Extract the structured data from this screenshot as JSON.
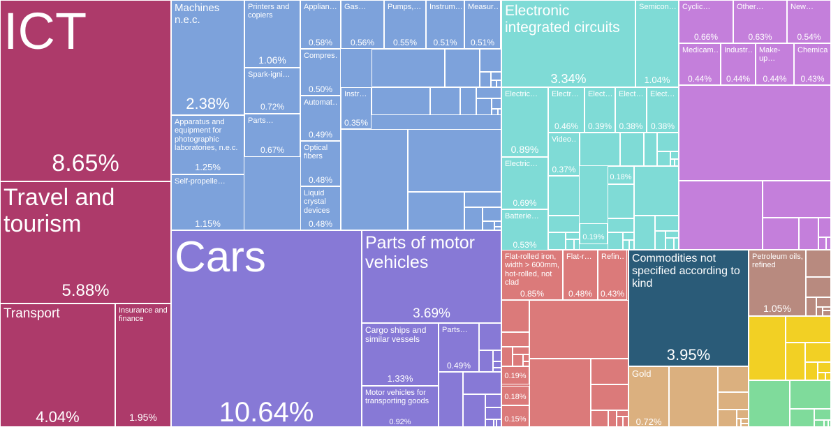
{
  "chart_data": {
    "type": "treemap",
    "title": "",
    "colors": {
      "services": "#ad3a6a",
      "machines": "#7da2db",
      "electronics": "#7fdbd6",
      "chemicals": "#c47fdb",
      "transportation": "#8779d6",
      "metals": "#db7a7a",
      "unspecified": "#2a5b78",
      "precious_metals": "#dbb07f",
      "minerals": "#b88a7f",
      "yellow": "#f2d024",
      "green": "#7fdb9b"
    },
    "tiles": [
      {
        "key": "ict",
        "label": "ICT",
        "value": "8.65%",
        "category": "services"
      },
      {
        "key": "travel",
        "label": "Travel and tourism",
        "value": "5.88%",
        "category": "services"
      },
      {
        "key": "transport",
        "label": "Transport",
        "value": "4.04%",
        "category": "services"
      },
      {
        "key": "insurance",
        "label": "Insurance and finance",
        "value": "1.95%",
        "category": "services"
      },
      {
        "key": "machines-nec",
        "label": "Machines n.e.c.",
        "value": "2.38%",
        "category": "machines"
      },
      {
        "key": "apparatus-photo",
        "label": "Apparatus and equipment for photographic laboratories, n.e.c.",
        "value": "1.25%",
        "category": "machines"
      },
      {
        "key": "self-propelled",
        "label": "Self-propelle…",
        "value": "1.15%",
        "category": "machines"
      },
      {
        "key": "printers",
        "label": "Printers and copiers",
        "value": "1.06%",
        "category": "machines"
      },
      {
        "key": "spark-ignition",
        "label": "Spark-igni…",
        "value": "0.72%",
        "category": "machines"
      },
      {
        "key": "parts-mach",
        "label": "Parts…",
        "value": "0.67%",
        "category": "machines"
      },
      {
        "key": "appliances",
        "label": "Applian…",
        "value": "0.58%",
        "category": "machines"
      },
      {
        "key": "gas",
        "label": "Gas…",
        "value": "0.56%",
        "category": "machines"
      },
      {
        "key": "pumps",
        "label": "Pumps,…",
        "value": "0.55%",
        "category": "machines"
      },
      {
        "key": "instrum",
        "label": "Instrum…",
        "value": "0.51%",
        "category": "machines"
      },
      {
        "key": "measur",
        "label": "Measur…",
        "value": "0.51%",
        "category": "machines"
      },
      {
        "key": "compress",
        "label": "Compres…",
        "value": "0.50%",
        "category": "machines"
      },
      {
        "key": "automat",
        "label": "Automat…",
        "value": "0.49%",
        "category": "machines"
      },
      {
        "key": "optical-fibers",
        "label": "Optical fibers",
        "value": "0.48%",
        "category": "machines"
      },
      {
        "key": "lcd",
        "label": "Liquid crystal devices",
        "value": "0.48%",
        "category": "machines"
      },
      {
        "key": "instr-small",
        "label": "Instr…",
        "value": "0.35%",
        "category": "machines"
      },
      {
        "key": "eic",
        "label": "Electronic integrated circuits",
        "value": "3.34%",
        "category": "electronics"
      },
      {
        "key": "semicon",
        "label": "Semicon…",
        "value": "1.04%",
        "category": "electronics"
      },
      {
        "key": "electric-a",
        "label": "Electric…",
        "value": "0.89%",
        "category": "electronics"
      },
      {
        "key": "electric-b",
        "label": "Electric…",
        "value": "0.69%",
        "category": "electronics"
      },
      {
        "key": "batteries",
        "label": "Batterie…",
        "value": "0.53%",
        "category": "electronics"
      },
      {
        "key": "electr-c",
        "label": "Electr…",
        "value": "0.46%",
        "category": "electronics"
      },
      {
        "key": "elect-d",
        "label": "Elect…",
        "value": "0.39%",
        "category": "electronics"
      },
      {
        "key": "elect-e",
        "label": "Elect…",
        "value": "0.38%",
        "category": "electronics"
      },
      {
        "key": "elect-f",
        "label": "Elect…",
        "value": "0.38%",
        "category": "electronics"
      },
      {
        "key": "video",
        "label": "Video…",
        "value": "0.37%",
        "category": "electronics"
      },
      {
        "key": "elec-018",
        "label": "",
        "value": "0.18%",
        "category": "electronics"
      },
      {
        "key": "elec-019",
        "label": "",
        "value": "0.19%",
        "category": "electronics"
      },
      {
        "key": "cyclic",
        "label": "Cyclic…",
        "value": "0.66%",
        "category": "chemicals"
      },
      {
        "key": "other",
        "label": "Other…",
        "value": "0.63%",
        "category": "chemicals"
      },
      {
        "key": "new",
        "label": "New…",
        "value": "0.54%",
        "category": "chemicals"
      },
      {
        "key": "medicam",
        "label": "Medicam…",
        "value": "0.44%",
        "category": "chemicals"
      },
      {
        "key": "industr",
        "label": "Industr…",
        "value": "0.44%",
        "category": "chemicals"
      },
      {
        "key": "makeup",
        "label": "Make-up…",
        "value": "0.44%",
        "category": "chemicals"
      },
      {
        "key": "chemica",
        "label": "Chemica…",
        "value": "0.43%",
        "category": "chemicals"
      },
      {
        "key": "cars",
        "label": "Cars",
        "value": "10.64%",
        "category": "transportation"
      },
      {
        "key": "parts-mv",
        "label": "Parts of motor vehicles",
        "value": "3.69%",
        "category": "transportation"
      },
      {
        "key": "cargo-ships",
        "label": "Cargo ships and similar vessels",
        "value": "1.33%",
        "category": "transportation"
      },
      {
        "key": "motor-goods",
        "label": "Motor vehicles for transporting goods",
        "value": "0.92%",
        "category": "transportation"
      },
      {
        "key": "parts-small",
        "label": "Parts…",
        "value": "0.49%",
        "category": "transportation"
      },
      {
        "key": "flat-rolled-600",
        "label": "Flat-rolled iron, width > 600mm, hot-rolled, not clad",
        "value": "0.85%",
        "category": "metals"
      },
      {
        "key": "flat-r",
        "label": "Flat-r…",
        "value": "0.48%",
        "category": "metals"
      },
      {
        "key": "refin",
        "label": "Refin…",
        "value": "0.43%",
        "category": "metals"
      },
      {
        "key": "metal-019",
        "label": "",
        "value": "0.19%",
        "category": "metals"
      },
      {
        "key": "metal-018",
        "label": "",
        "value": "0.18%",
        "category": "metals"
      },
      {
        "key": "metal-015",
        "label": "",
        "value": "0.15%",
        "category": "metals"
      },
      {
        "key": "commodities",
        "label": "Commodities not specified according to kind",
        "value": "3.95%",
        "category": "unspecified"
      },
      {
        "key": "gold",
        "label": "Gold",
        "value": "0.72%",
        "category": "precious_metals"
      },
      {
        "key": "petroleum",
        "label": "Petroleum oils, refined",
        "value": "1.05%",
        "category": "minerals"
      }
    ]
  }
}
